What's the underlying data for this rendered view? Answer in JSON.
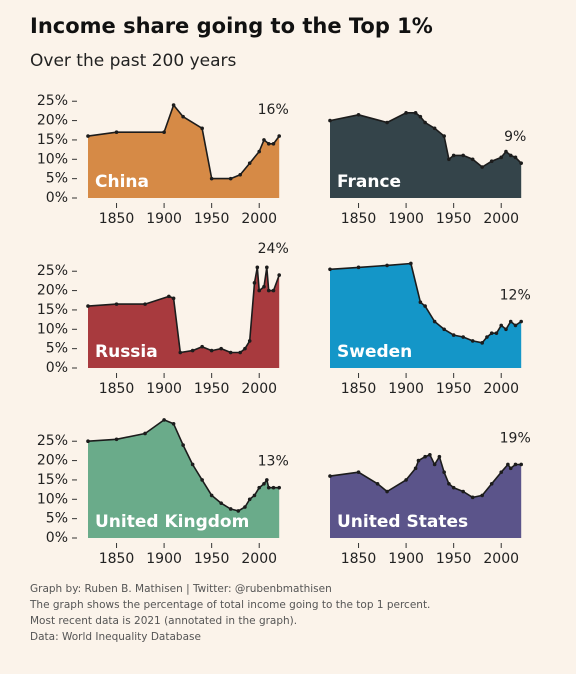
{
  "title": "Income share going to the Top 1%",
  "subtitle": "Over the past 200 years",
  "notes": [
    "Graph by: Ruben B. Mathisen | Twitter: @rubenbmathisen",
    "The graph shows the percentage of total income going to the top 1 percent.",
    "Most recent data is 2021 (annotated in the graph).",
    "Data: World Inequality Database"
  ],
  "chart_data": [
    {
      "type": "area",
      "title": "China",
      "color": "#d68a46",
      "annotation": "16%",
      "x": [
        1820,
        1850,
        1900,
        1910,
        1920,
        1940,
        1950,
        1970,
        1980,
        1990,
        2000,
        2005,
        2010,
        2015,
        2021
      ],
      "values": [
        16,
        17,
        17,
        24,
        21,
        18,
        5,
        5,
        6,
        9,
        12,
        15,
        14,
        14,
        16
      ],
      "xlim": [
        1820,
        2025
      ],
      "xticks": [
        1850,
        1900,
        1950,
        2000
      ],
      "ylim": [
        0,
        31
      ],
      "yticks": [
        {
          "value": 0,
          "label": "0%"
        },
        {
          "value": 5,
          "label": "5%"
        },
        {
          "value": 10,
          "label": "10%"
        },
        {
          "value": 15,
          "label": "15%"
        },
        {
          "value": 20,
          "label": "20%"
        },
        {
          "value": 25,
          "label": "25%"
        }
      ]
    },
    {
      "type": "area",
      "title": "France",
      "color": "#34444a",
      "annotation": "9%",
      "x": [
        1820,
        1850,
        1880,
        1900,
        1910,
        1915,
        1920,
        1930,
        1940,
        1945,
        1950,
        1960,
        1970,
        1980,
        1990,
        2000,
        2005,
        2010,
        2015,
        2021
      ],
      "values": [
        20,
        21.5,
        19.5,
        22,
        22,
        21,
        19.5,
        18,
        16,
        10,
        11,
        11,
        10,
        8,
        9.5,
        10.5,
        12,
        11,
        10.5,
        9
      ],
      "xlim": [
        1820,
        2025
      ],
      "xticks": [
        1850,
        1900,
        1950,
        2000
      ],
      "ylim": [
        0,
        31
      ]
    },
    {
      "type": "area",
      "title": "Russia",
      "color": "#a83a3e",
      "annotation": "24%",
      "x": [
        1820,
        1850,
        1880,
        1905,
        1910,
        1917,
        1930,
        1940,
        1950,
        1960,
        1970,
        1980,
        1985,
        1990,
        1995,
        1998,
        2000,
        2005,
        2008,
        2010,
        2015,
        2021
      ],
      "values": [
        16,
        16.5,
        16.5,
        18.5,
        18,
        4,
        4.5,
        5.5,
        4.5,
        5,
        4,
        4,
        5,
        7,
        22,
        26,
        20,
        21,
        26,
        20,
        20,
        24
      ],
      "xlim": [
        1820,
        2025
      ],
      "xticks": [
        1850,
        1900,
        1950,
        2000
      ],
      "ylim": [
        0,
        31
      ],
      "yticks": [
        {
          "value": 0,
          "label": "0%"
        },
        {
          "value": 5,
          "label": "5%"
        },
        {
          "value": 10,
          "label": "10%"
        },
        {
          "value": 15,
          "label": "15%"
        },
        {
          "value": 20,
          "label": "20%"
        },
        {
          "value": 25,
          "label": "25%"
        }
      ]
    },
    {
      "type": "area",
      "title": "Sweden",
      "color": "#1496c8",
      "annotation": "12%",
      "x": [
        1820,
        1850,
        1880,
        1905,
        1915,
        1920,
        1930,
        1940,
        1950,
        1960,
        1970,
        1980,
        1985,
        1990,
        1995,
        2000,
        2005,
        2010,
        2015,
        2021
      ],
      "values": [
        25.5,
        26,
        26.5,
        27,
        17,
        16,
        12,
        10,
        8.5,
        8,
        7,
        6.5,
        8,
        9,
        9,
        11,
        10,
        12,
        11,
        12
      ],
      "xlim": [
        1820,
        2025
      ],
      "xticks": [
        1850,
        1900,
        1950,
        2000
      ],
      "ylim": [
        0,
        31
      ]
    },
    {
      "type": "area",
      "title": "United Kingdom",
      "color": "#6aab8a",
      "annotation": "13%",
      "x": [
        1820,
        1850,
        1880,
        1900,
        1910,
        1920,
        1930,
        1940,
        1950,
        1960,
        1970,
        1978,
        1985,
        1990,
        1995,
        2000,
        2005,
        2008,
        2010,
        2015,
        2021
      ],
      "values": [
        25,
        25.5,
        27,
        30.5,
        29.5,
        24,
        19,
        15,
        11,
        9,
        7.5,
        7,
        8,
        10,
        11,
        13,
        14,
        15,
        13,
        13,
        13
      ],
      "xlim": [
        1820,
        2025
      ],
      "xticks": [
        1850,
        1900,
        1950,
        2000
      ],
      "ylim": [
        0,
        31
      ],
      "yticks": [
        {
          "value": 0,
          "label": "0%"
        },
        {
          "value": 5,
          "label": "5%"
        },
        {
          "value": 10,
          "label": "10%"
        },
        {
          "value": 15,
          "label": "15%"
        },
        {
          "value": 20,
          "label": "20%"
        },
        {
          "value": 25,
          "label": "25%"
        }
      ]
    },
    {
      "type": "area",
      "title": "United States",
      "color": "#5b548a",
      "annotation": "19%",
      "x": [
        1820,
        1850,
        1870,
        1880,
        1900,
        1910,
        1913,
        1920,
        1925,
        1930,
        1935,
        1940,
        1945,
        1950,
        1960,
        1970,
        1980,
        1990,
        2000,
        2007,
        2010,
        2015,
        2021
      ],
      "values": [
        16,
        17,
        14,
        12,
        15,
        18,
        20,
        21,
        21.5,
        19,
        21,
        17,
        14,
        13,
        12,
        10.5,
        11,
        14,
        17,
        19,
        18,
        19,
        19
      ],
      "xlim": [
        1820,
        2025
      ],
      "xticks": [
        1850,
        1900,
        1950,
        2000
      ],
      "ylim": [
        0,
        31
      ]
    }
  ]
}
